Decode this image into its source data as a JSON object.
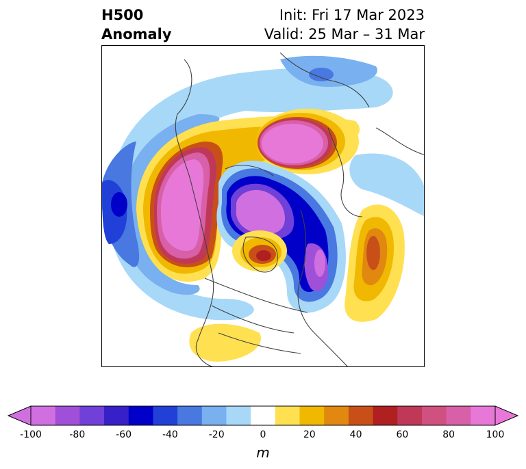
{
  "header": {
    "title_line1": "H500",
    "title_line2": "Anomaly",
    "init": "Init: Fri 17 Mar 2023",
    "valid": "Valid: 25 Mar – 31 Mar"
  },
  "colorbar": {
    "unit": "m",
    "levels": [
      -100,
      -90,
      -80,
      -70,
      -60,
      -50,
      -40,
      -30,
      -20,
      -10,
      10,
      20,
      30,
      40,
      50,
      60,
      70,
      80,
      90,
      100
    ],
    "colors": [
      "#d070e0",
      "#a050d8",
      "#7040d8",
      "#3820c8",
      "#0000c8",
      "#2040d8",
      "#4878e0",
      "#78b0f0",
      "#a8d8f8",
      "#ffffff",
      "#ffe050",
      "#f0b800",
      "#e08810",
      "#c85018",
      "#b02020",
      "#c03858",
      "#d05080",
      "#d860a8",
      "#e878d8"
    ],
    "tick_labels": [
      "-100",
      "-80",
      "-60",
      "-40",
      "-20",
      "0",
      "20",
      "40",
      "60",
      "80",
      "100"
    ]
  }
}
